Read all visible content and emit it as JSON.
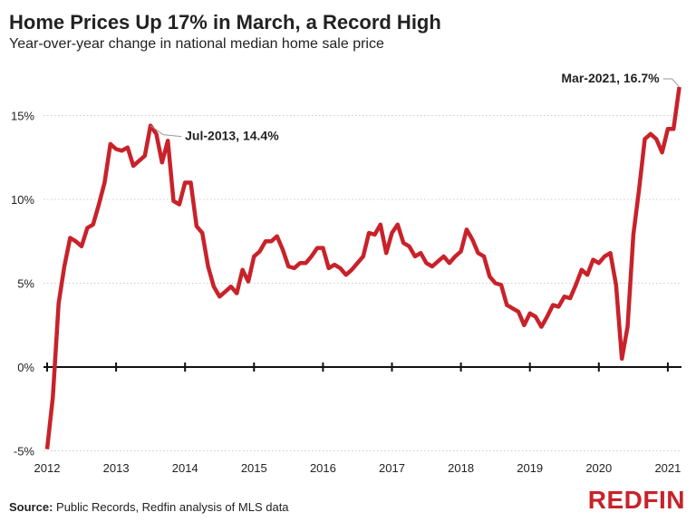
{
  "title": "Home Prices Up 17% in March, a Record High",
  "subtitle": "Year-over-year change in national median home sale price",
  "source_label": "Source:",
  "source_text": " Public Records, Redfin analysis of MLS data",
  "logo": "REDFIN",
  "chart_data": {
    "type": "line",
    "title": "Home Prices Up 17% in March, a Record High",
    "subtitle": "Year-over-year change in national median home sale price",
    "xlabel": "",
    "ylabel": "",
    "x_start": "2012-01",
    "x_frequency": "monthly",
    "x_ticks": [
      "2012",
      "2013",
      "2014",
      "2015",
      "2016",
      "2017",
      "2018",
      "2019",
      "2020",
      "2021"
    ],
    "y_ticks": [
      "-5%",
      "0%",
      "5%",
      "10%",
      "15%"
    ],
    "y_tick_values": [
      -5,
      0,
      5,
      10,
      15
    ],
    "ylim": [
      -5,
      17
    ],
    "grid": "horizontal dotted",
    "line_color": "#c8222a",
    "series": [
      {
        "values": [
          -4.9,
          -1.8,
          3.8,
          6.0,
          7.7,
          7.5,
          7.2,
          8.3,
          8.5,
          9.7,
          11.0,
          13.3,
          13.0,
          12.9,
          13.1,
          12.0,
          12.3,
          12.6,
          14.4,
          13.9,
          12.2,
          13.5,
          9.9,
          9.7,
          11.0,
          11.0,
          8.4,
          8.0,
          6.0,
          4.8,
          4.2,
          4.5,
          4.8,
          4.4,
          5.8,
          5.1,
          6.6,
          6.9,
          7.5,
          7.5,
          7.8,
          7.0,
          6.0,
          5.9,
          6.2,
          6.2,
          6.6,
          7.1,
          7.1,
          5.9,
          6.1,
          5.9,
          5.5,
          5.8,
          6.2,
          6.6,
          8.0,
          7.9,
          8.5,
          6.8,
          8.0,
          8.5,
          7.4,
          7.2,
          6.6,
          6.8,
          6.2,
          6.0,
          6.3,
          6.6,
          6.2,
          6.6,
          6.9,
          8.2,
          7.6,
          6.8,
          6.6,
          5.4,
          5.0,
          4.9,
          3.7,
          3.5,
          3.3,
          2.5,
          3.2,
          3.0,
          2.4,
          3.0,
          3.7,
          3.6,
          4.2,
          4.1,
          4.9,
          5.8,
          5.5,
          6.4,
          6.2,
          6.6,
          6.8,
          4.9,
          0.5,
          2.4,
          7.9,
          10.6,
          13.6,
          13.9,
          13.6,
          12.8,
          14.2,
          14.2,
          16.7
        ]
      }
    ],
    "annotations": [
      {
        "label": "Jul-2013, 14.4%",
        "month_index": 18
      },
      {
        "label": "Mar-2021, 16.7%",
        "month_index": 110
      }
    ]
  }
}
